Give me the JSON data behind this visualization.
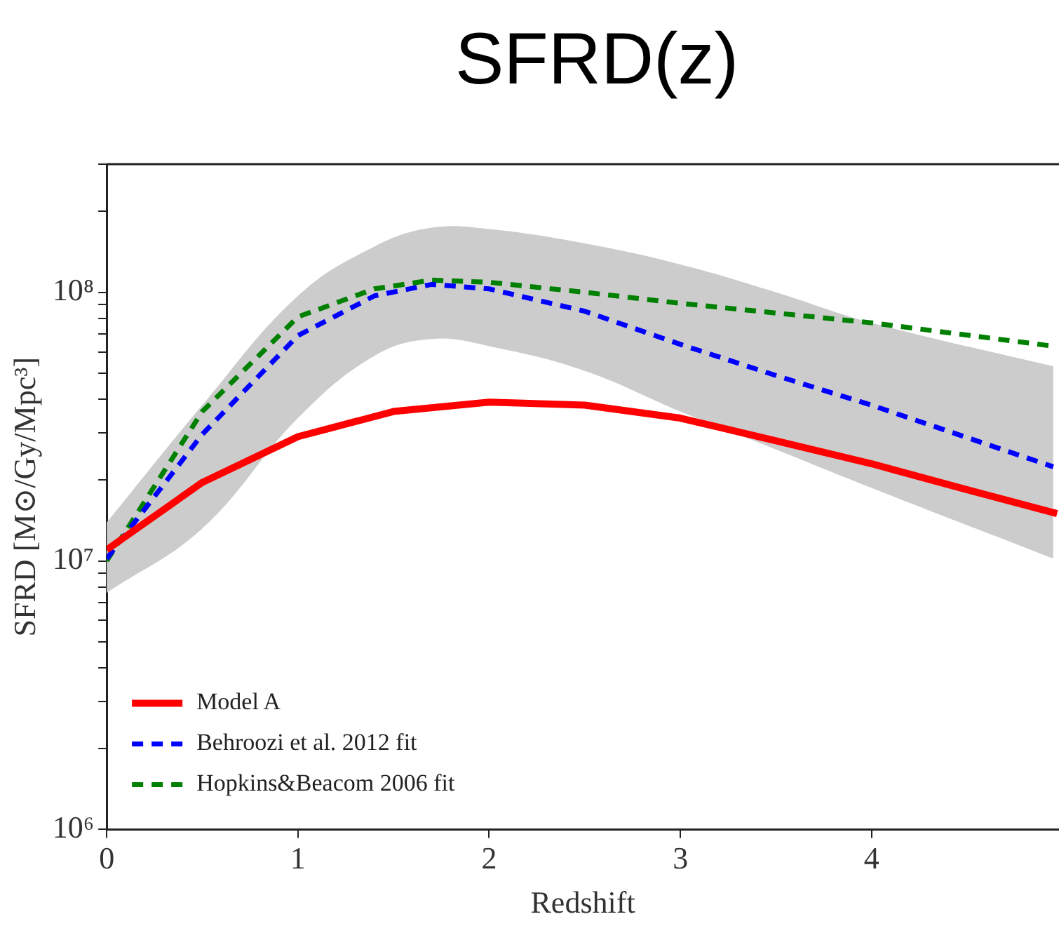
{
  "chart_data": {
    "type": "line",
    "title": "SFRD(z)",
    "xlabel": "Redshift",
    "ylabel": "SFRD [M⊙/Gy/Mpc³]",
    "log": "y",
    "legend": "bottom left",
    "xlim": [
      0,
      4.98
    ],
    "xticks": [
      0,
      1,
      2,
      3,
      4
    ],
    "ylim": [
      1000000,
      300000000
    ],
    "yticks": [
      {
        "value": 1000000,
        "label": "10⁶"
      },
      {
        "value": 2000000,
        "label": null
      },
      {
        "value": 3000000,
        "label": null
      },
      {
        "value": 4000000,
        "label": null
      },
      {
        "value": 5000000,
        "label": null
      },
      {
        "value": 6000000,
        "label": null
      },
      {
        "value": 7000000,
        "label": null
      },
      {
        "value": 8000000,
        "label": null
      },
      {
        "value": 9000000,
        "label": null
      },
      {
        "value": 10000000,
        "label": "10⁷"
      },
      {
        "value": 20000000,
        "label": null
      },
      {
        "value": 30000000,
        "label": null
      },
      {
        "value": 40000000,
        "label": null
      },
      {
        "value": 50000000,
        "label": null
      },
      {
        "value": 60000000,
        "label": null
      },
      {
        "value": 70000000,
        "label": null
      },
      {
        "value": 80000000,
        "label": null
      },
      {
        "value": 90000000,
        "label": null
      },
      {
        "value": 100000000,
        "label": "10⁸"
      },
      {
        "value": 200000000,
        "label": null
      },
      {
        "value": 300000000,
        "label": null
      }
    ],
    "series": [
      {
        "name": "Model A",
        "color": "#ff0000",
        "line_style": "solid",
        "x": [
          0,
          0.5,
          1,
          1.5,
          2,
          2.5,
          3,
          3.5,
          4,
          4.5,
          4.97
        ],
        "values": [
          11000000,
          19600000,
          29000000,
          36000000,
          39000000,
          38000000,
          34000000,
          28000000,
          23000000,
          18400000,
          15000000
        ]
      },
      {
        "name": "Behroozi et al. 2012 fit",
        "color": "#0000ff",
        "line_style": "dashed",
        "x": [
          0,
          0.5,
          1,
          1.4,
          1.7,
          2,
          2.5,
          3,
          3.5,
          4,
          4.95
        ],
        "values": [
          10200000,
          29600000,
          69000000,
          97000000,
          107000000,
          103000000,
          85000000,
          64000000,
          49000000,
          38000000,
          22400000
        ],
        "lower": [
          7600000,
          13200000,
          34000000,
          58000000,
          67000000,
          63000000,
          51000000,
          36000000,
          26000000,
          18700000,
          10200000
        ],
        "upper": [
          13900000,
          38000000,
          97000000,
          148000000,
          174000000,
          172000000,
          152000000,
          127000000,
          100000000,
          77000000,
          53000000
        ]
      },
      {
        "name": "Hopkins&Beacom 2006 fit",
        "color": "#008000",
        "line_style": "dashed",
        "x": [
          0,
          0.5,
          1,
          1.4,
          1.7,
          2,
          2.5,
          3,
          4,
          4.95
        ],
        "values": [
          10000000,
          36000000,
          81000000,
          103000000,
          111000000,
          109000000,
          100000000,
          91000000,
          77000000,
          63000000
        ]
      }
    ]
  }
}
